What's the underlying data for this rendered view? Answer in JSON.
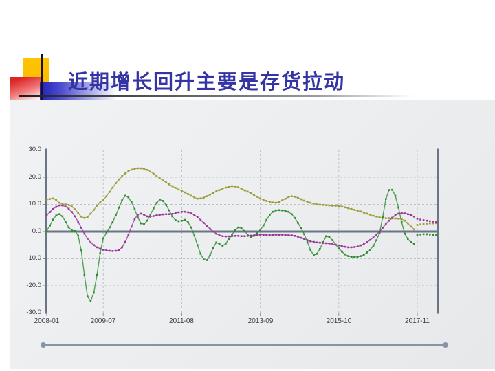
{
  "slide": {
    "title": "近期增长回升主要是存货拉动",
    "title_color": "#3434a4",
    "accent_colors": {
      "yellow": "#FFC400",
      "red": "#DD2626",
      "blue": "#2121BB",
      "line_black": "#141414"
    }
  },
  "chart_data": {
    "type": "line",
    "title": "",
    "xlabel": "",
    "ylabel": "",
    "x_unit": "month",
    "x_start": "2008-01",
    "x_end": "2018-05",
    "x_tick_labels": [
      "2008-01",
      "2009-07",
      "2011-08",
      "2013-09",
      "2015-10",
      "2017-11"
    ],
    "x_tick_month_index": [
      0,
      18,
      43,
      68,
      93,
      118
    ],
    "ylim": [
      -30,
      30
    ],
    "y_ticks": [
      30,
      20,
      10,
      0,
      -10,
      -20,
      -30
    ],
    "y_tick_labels": [
      "30.0",
      "20.0",
      "10.0",
      "0.0",
      "-10.0",
      "-20.0",
      "-30.0"
    ],
    "grid": "dashed",
    "grid_color": "#bcc0c8",
    "axis_color": "#6a7586",
    "tick_color": "#8b929c",
    "legend": "none",
    "forecast_start_index": 118,
    "series": [
      {
        "name": "olive-series",
        "color": "#9A9A33",
        "values": [
          11.8,
          12.0,
          12.2,
          11.6,
          10.6,
          10.1,
          10.0,
          9.8,
          9.2,
          8.2,
          6.8,
          5.5,
          5.0,
          5.4,
          6.6,
          8.0,
          9.5,
          10.7,
          11.6,
          13.0,
          14.6,
          16.2,
          17.8,
          19.2,
          20.4,
          21.4,
          22.2,
          22.8,
          23.1,
          23.3,
          23.3,
          23.1,
          22.7,
          22.1,
          21.3,
          20.4,
          19.6,
          18.8,
          18.1,
          17.4,
          16.7,
          16.1,
          15.5,
          15.0,
          14.4,
          13.8,
          13.2,
          12.6,
          12.1,
          12.2,
          12.5,
          13.0,
          13.6,
          14.2,
          14.8,
          15.3,
          15.8,
          16.2,
          16.5,
          16.7,
          16.6,
          16.3,
          15.8,
          15.2,
          14.7,
          14.1,
          13.4,
          12.8,
          12.2,
          11.7,
          11.3,
          11.0,
          10.7,
          10.6,
          10.9,
          11.5,
          12.1,
          12.7,
          13.0,
          12.8,
          12.4,
          11.9,
          11.4,
          11.0,
          10.6,
          10.3,
          10.0,
          9.9,
          9.8,
          9.7,
          9.6,
          9.5,
          9.5,
          9.4,
          9.2,
          8.9,
          8.6,
          8.3,
          8.0,
          7.7,
          7.4,
          7.0,
          6.6,
          6.2,
          5.8,
          5.5,
          5.2,
          5.0,
          4.9,
          4.9,
          4.8,
          4.8,
          4.7,
          4.6,
          4.0,
          3.0,
          1.8,
          0.8,
          2.4,
          2.6,
          2.8,
          2.9,
          3.0,
          3.0,
          3.1
        ]
      },
      {
        "name": "green-series",
        "color": "#2E8B2E",
        "values": [
          0.3,
          2.2,
          4.4,
          5.9,
          6.4,
          5.6,
          3.6,
          1.5,
          0.4,
          0.2,
          -1.5,
          -7.0,
          -16.0,
          -24.0,
          -25.6,
          -22.5,
          -16.0,
          -8.0,
          -2.5,
          -0.5,
          1.5,
          3.5,
          6.0,
          8.8,
          11.5,
          13.2,
          12.6,
          10.8,
          8.2,
          5.2,
          3.0,
          2.7,
          4.0,
          6.2,
          8.5,
          10.5,
          11.8,
          11.3,
          9.8,
          7.8,
          5.6,
          4.2,
          3.8,
          4.0,
          4.3,
          3.4,
          1.5,
          -1.5,
          -5.0,
          -8.2,
          -10.3,
          -10.5,
          -8.8,
          -6.0,
          -4.0,
          -4.6,
          -5.3,
          -4.4,
          -2.8,
          -1.2,
          0.5,
          1.5,
          1.2,
          0.2,
          -1.2,
          -2.0,
          -1.6,
          -0.6,
          0.5,
          2.2,
          4.3,
          6.1,
          7.3,
          7.8,
          7.9,
          7.8,
          7.6,
          7.3,
          6.4,
          5.0,
          3.2,
          1.2,
          -1.0,
          -3.8,
          -6.8,
          -8.7,
          -8.2,
          -6.4,
          -3.9,
          -1.7,
          -2.1,
          -3.2,
          -4.8,
          -6.2,
          -7.4,
          -8.4,
          -9.0,
          -9.3,
          -9.4,
          -9.3,
          -9.0,
          -8.5,
          -7.7,
          -6.7,
          -5.2,
          -3.2,
          -0.5,
          5.5,
          12.0,
          15.3,
          15.4,
          13.2,
          8.8,
          3.5,
          -0.8,
          -2.8,
          -3.9,
          -4.5,
          -1.2,
          -1.1,
          -1.0,
          -1.0,
          -1.1,
          -1.2,
          -1.3
        ]
      },
      {
        "name": "purple-series",
        "color": "#993399",
        "values": [
          6.0,
          7.2,
          8.3,
          9.1,
          9.6,
          9.6,
          9.2,
          8.4,
          7.2,
          5.6,
          3.6,
          1.4,
          -0.8,
          -2.6,
          -4.0,
          -5.0,
          -5.8,
          -6.3,
          -6.7,
          -6.9,
          -7.1,
          -7.2,
          -7.1,
          -6.8,
          -5.8,
          -3.8,
          -1.2,
          1.8,
          4.6,
          6.2,
          6.6,
          6.2,
          5.6,
          5.5,
          5.7,
          6.0,
          6.1,
          6.3,
          6.4,
          6.4,
          6.5,
          6.8,
          7.1,
          7.3,
          7.3,
          7.1,
          6.7,
          6.1,
          5.3,
          4.3,
          3.2,
          2.1,
          1.0,
          0.0,
          -0.8,
          -1.4,
          -1.7,
          -1.8,
          -1.8,
          -1.7,
          -1.6,
          -1.6,
          -1.7,
          -1.7,
          -1.6,
          -1.5,
          -1.4,
          -1.3,
          -1.2,
          -1.2,
          -1.3,
          -1.3,
          -1.3,
          -1.2,
          -1.2,
          -1.2,
          -1.3,
          -1.3,
          -1.4,
          -1.6,
          -1.9,
          -2.3,
          -2.8,
          -3.2,
          -3.6,
          -3.8,
          -4.0,
          -4.1,
          -4.2,
          -4.3,
          -4.4,
          -4.6,
          -4.8,
          -5.1,
          -5.4,
          -5.6,
          -5.8,
          -5.8,
          -5.7,
          -5.5,
          -5.1,
          -4.6,
          -3.9,
          -3.1,
          -2.2,
          -1.2,
          0.0,
          1.4,
          2.8,
          4.0,
          5.1,
          6.0,
          6.6,
          6.8,
          6.7,
          6.4,
          6.0,
          5.5,
          4.7,
          4.4,
          4.2,
          4.0,
          3.8,
          3.7,
          3.6
        ]
      }
    ]
  },
  "scrollbar": {
    "color": "#8794A5"
  }
}
